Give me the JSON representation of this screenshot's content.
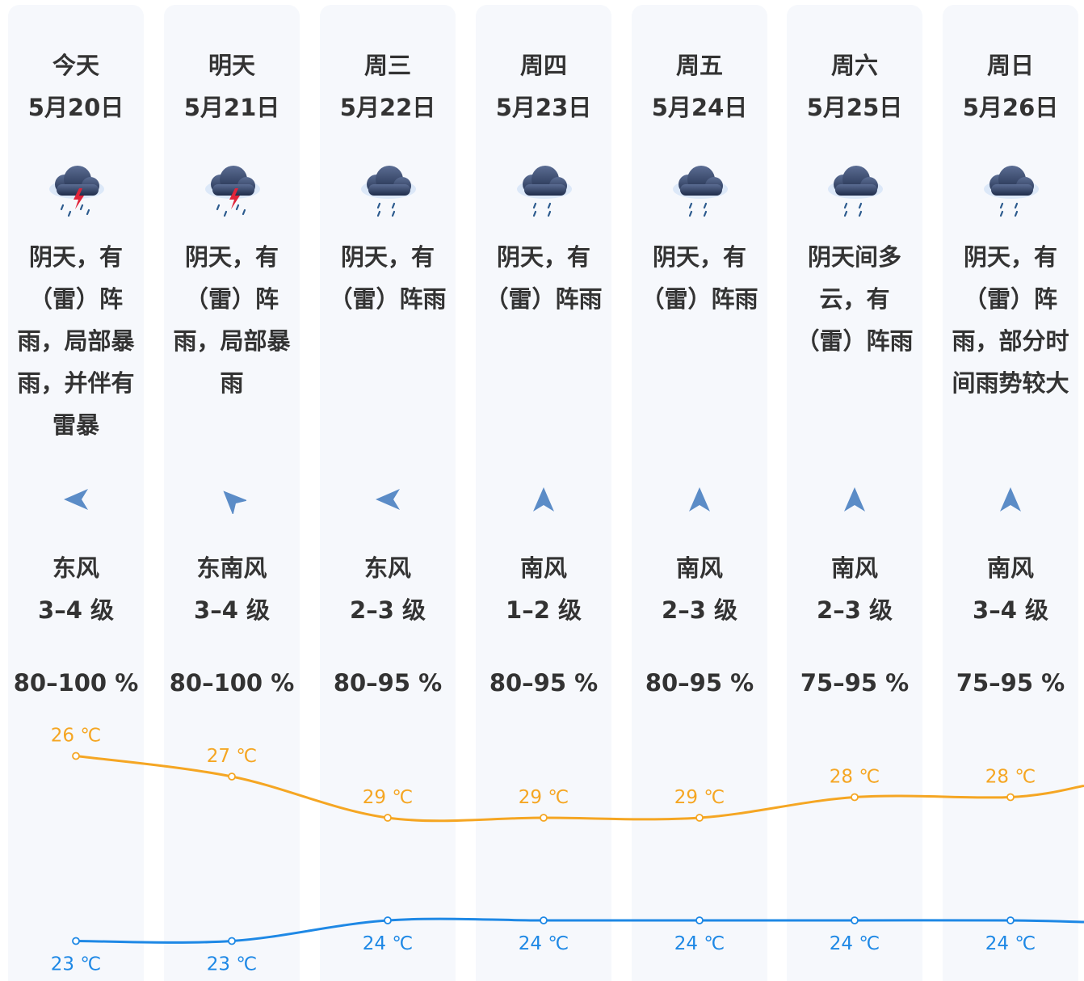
{
  "days": [
    {
      "name": "今天",
      "date": "5月20日",
      "icon": "thunderstorm-rain-icon",
      "desc": [
        "阴天，有",
        "（雷）阵",
        "雨，局部暴",
        "雨，并伴有",
        "雷暴"
      ],
      "wind_dir": "东风",
      "wind_level": "3–4 级",
      "wind_arrow": "arrow-pointing-west-icon",
      "humidity": "80–100 %",
      "high": "26 ℃",
      "low": "23 ℃"
    },
    {
      "name": "明天",
      "date": "5月21日",
      "icon": "thunderstorm-rain-icon",
      "desc": [
        "阴天，有",
        "（雷）阵",
        "雨，局部暴",
        "雨"
      ],
      "wind_dir": "东南风",
      "wind_level": "3–4 级",
      "wind_arrow": "arrow-pointing-northwest-icon",
      "humidity": "80–100 %",
      "high": "27 ℃",
      "low": "23 ℃"
    },
    {
      "name": "周三",
      "date": "5月22日",
      "icon": "rain-cloud-icon",
      "desc": [
        "阴天，有",
        "（雷）阵雨"
      ],
      "wind_dir": "东风",
      "wind_level": "2–3 级",
      "wind_arrow": "arrow-pointing-west-icon",
      "humidity": "80–95 %",
      "high": "29 ℃",
      "low": "24 ℃"
    },
    {
      "name": "周四",
      "date": "5月23日",
      "icon": "rain-cloud-icon",
      "desc": [
        "阴天，有",
        "（雷）阵雨"
      ],
      "wind_dir": "南风",
      "wind_level": "1–2 级",
      "wind_arrow": "arrow-pointing-north-icon",
      "humidity": "80–95 %",
      "high": "29 ℃",
      "low": "24 ℃"
    },
    {
      "name": "周五",
      "date": "5月24日",
      "icon": "rain-cloud-icon",
      "desc": [
        "阴天，有",
        "（雷）阵雨"
      ],
      "wind_dir": "南风",
      "wind_level": "2–3 级",
      "wind_arrow": "arrow-pointing-north-icon",
      "humidity": "80–95 %",
      "high": "29 ℃",
      "low": "24 ℃"
    },
    {
      "name": "周六",
      "date": "5月25日",
      "icon": "rain-cloud-icon",
      "desc": [
        "阴天间多",
        "云，有",
        "（雷）阵雨"
      ],
      "wind_dir": "南风",
      "wind_level": "2–3 级",
      "wind_arrow": "arrow-pointing-north-icon",
      "humidity": "75–95 %",
      "high": "28 ℃",
      "low": "24 ℃"
    },
    {
      "name": "周日",
      "date": "5月26日",
      "icon": "rain-cloud-icon",
      "desc": [
        "阴天，有",
        "（雷）阵",
        "雨，部分时",
        "间雨势较大"
      ],
      "wind_dir": "南风",
      "wind_level": "3–4 级",
      "wind_arrow": "arrow-pointing-north-icon",
      "humidity": "75–95 %",
      "high": "28 ℃",
      "low": "24 ℃"
    }
  ],
  "chart_data": {
    "type": "line",
    "categories": [
      "5月20日",
      "5月21日",
      "5月22日",
      "5月23日",
      "5月24日",
      "5月25日",
      "5月26日"
    ],
    "series": [
      {
        "values": [
          26,
          27,
          29,
          29,
          29,
          28,
          28
        ],
        "color": "#f5a623"
      },
      {
        "values": [
          23,
          23,
          24,
          24,
          24,
          24,
          24
        ],
        "color": "#1e88e5"
      }
    ],
    "unit": "℃"
  },
  "colors": {
    "column_bg": "#f6f8fc",
    "high_line": "#f5a623",
    "low_line": "#1e88e5",
    "text": "#333333",
    "arrow": "#4a7fc1"
  }
}
